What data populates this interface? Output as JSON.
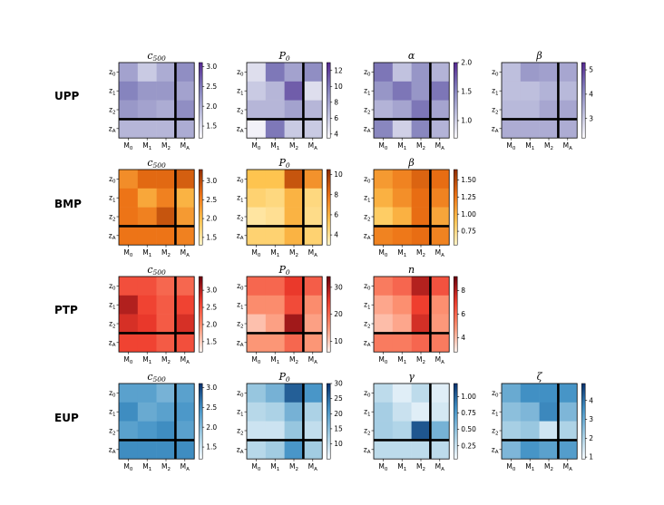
{
  "axis_labels": {
    "x": [
      "M0",
      "M1",
      "M2",
      "MA"
    ],
    "y": [
      "z0",
      "z1",
      "z2",
      "zA"
    ]
  },
  "chart_data": [
    {
      "type": "heatmap",
      "row": "UPP",
      "col": 0,
      "title": "c500",
      "cmap": "purple",
      "vmin": 1.2,
      "vmax": 3.1,
      "cbar_ticks": [
        1.5,
        2.0,
        2.5,
        3.0
      ],
      "cbar_labels": [
        "1.5",
        "2.0",
        "2.5",
        "3.0"
      ],
      "values": [
        [
          2.1,
          1.7,
          2.0,
          2.3
        ],
        [
          2.4,
          2.2,
          2.2,
          2.1
        ],
        [
          2.2,
          2.1,
          2.0,
          2.3
        ],
        [
          1.9,
          1.9,
          1.9,
          2.0
        ]
      ]
    },
    {
      "type": "heatmap",
      "row": "UPP",
      "col": 1,
      "title": "P0",
      "cmap": "purple",
      "vmin": 3.5,
      "vmax": 13,
      "cbar_ticks": [
        4,
        6,
        8,
        10,
        12
      ],
      "cbar_labels": [
        "4",
        "6",
        "8",
        "10",
        "12"
      ],
      "values": [
        [
          5,
          10,
          8,
          9
        ],
        [
          6,
          7,
          11,
          5
        ],
        [
          7,
          7,
          8,
          7
        ],
        [
          4,
          10,
          6,
          6
        ]
      ]
    },
    {
      "type": "heatmap",
      "row": "UPP",
      "col": 2,
      "title": "α",
      "cmap": "purple",
      "vmin": 0.7,
      "vmax": 2.0,
      "cbar_ticks": [
        1.0,
        1.5,
        2.0
      ],
      "cbar_labels": [
        "1.0",
        "1.5",
        "2.0"
      ],
      "values": [
        [
          1.6,
          1.1,
          1.4,
          1.2
        ],
        [
          1.4,
          1.6,
          1.4,
          1.6
        ],
        [
          1.2,
          1.3,
          1.6,
          1.3
        ],
        [
          1.5,
          1.0,
          1.5,
          1.2
        ]
      ]
    },
    {
      "type": "heatmap",
      "row": "UPP",
      "col": 3,
      "title": "β",
      "cmap": "purple",
      "vmin": 2.2,
      "vmax": 5.3,
      "cbar_ticks": [
        3,
        4,
        5
      ],
      "cbar_labels": [
        "3",
        "4",
        "5"
      ],
      "values": [
        [
          3.2,
          3.8,
          3.7,
          3.6
        ],
        [
          3.2,
          3.2,
          3.4,
          3.3
        ],
        [
          3.3,
          3.3,
          3.6,
          3.6
        ],
        [
          3.5,
          3.5,
          3.5,
          3.5
        ]
      ]
    },
    {
      "type": "heatmap",
      "row": "BMP",
      "col": 0,
      "title": "c500",
      "cmap": "orange",
      "vmin": 1.3,
      "vmax": 3.3,
      "cbar_ticks": [
        1.5,
        2.0,
        2.5,
        3.0
      ],
      "cbar_labels": [
        "1.5",
        "2.0",
        "2.5",
        "3.0"
      ],
      "values": [
        [
          2.4,
          2.7,
          2.7,
          2.8
        ],
        [
          2.6,
          2.2,
          2.5,
          2.1
        ],
        [
          2.6,
          2.5,
          2.9,
          2.3
        ],
        [
          2.6,
          2.6,
          2.6,
          2.5
        ]
      ]
    },
    {
      "type": "heatmap",
      "row": "BMP",
      "col": 1,
      "title": "P0",
      "cmap": "orange",
      "vmin": 3.0,
      "vmax": 10.5,
      "cbar_ticks": [
        4,
        6,
        8,
        10
      ],
      "cbar_labels": [
        "4",
        "6",
        "8",
        "10"
      ],
      "values": [
        [
          5.5,
          5.5,
          9,
          7
        ],
        [
          4.8,
          4.5,
          6,
          4.5
        ],
        [
          3.8,
          4.1,
          6,
          4.3
        ],
        [
          4.8,
          4.8,
          6,
          4.8
        ]
      ]
    },
    {
      "type": "heatmap",
      "row": "BMP",
      "col": 2,
      "title": "β",
      "cmap": "orange",
      "vmin": 0.55,
      "vmax": 1.65,
      "cbar_ticks": [
        0.75,
        1.0,
        1.25,
        1.5
      ],
      "cbar_labels": [
        "0.75",
        "1.00",
        "1.25",
        "1.50"
      ],
      "values": [
        [
          1.1,
          1.2,
          1.35,
          1.3
        ],
        [
          1.0,
          1.15,
          1.3,
          1.2
        ],
        [
          0.85,
          1.0,
          1.3,
          1.05
        ],
        [
          1.2,
          1.25,
          1.3,
          1.2
        ]
      ]
    },
    {
      "type": "heatmap",
      "row": "PTP",
      "col": 0,
      "title": "c500",
      "cmap": "red",
      "vmin": 1.2,
      "vmax": 3.4,
      "cbar_ticks": [
        1.5,
        2.0,
        2.5,
        3.0
      ],
      "cbar_labels": [
        "1.5",
        "2.0",
        "2.5",
        "3.0"
      ],
      "values": [
        [
          2.5,
          2.5,
          2.3,
          2.3
        ],
        [
          3.0,
          2.6,
          2.4,
          2.6
        ],
        [
          2.8,
          2.7,
          2.4,
          2.8
        ],
        [
          2.6,
          2.6,
          2.4,
          2.5
        ]
      ]
    },
    {
      "type": "heatmap",
      "row": "PTP",
      "col": 1,
      "title": "P0",
      "cmap": "red",
      "vmin": 6,
      "vmax": 34,
      "cbar_ticks": [
        10,
        20,
        30
      ],
      "cbar_labels": [
        "10",
        "20",
        "30"
      ],
      "values": [
        [
          20,
          20,
          25,
          21
        ],
        [
          16,
          16,
          23,
          16
        ],
        [
          11,
          14,
          30,
          14
        ],
        [
          15,
          15,
          20,
          15
        ]
      ]
    },
    {
      "type": "heatmap",
      "row": "PTP",
      "col": 2,
      "title": "n",
      "cmap": "red",
      "vmin": 2.8,
      "vmax": 9.2,
      "cbar_ticks": [
        4,
        6,
        8
      ],
      "cbar_labels": [
        "4",
        "6",
        "8"
      ],
      "values": [
        [
          5.5,
          6.0,
          8.0,
          6.5
        ],
        [
          4.5,
          5.0,
          7.0,
          5.0
        ],
        [
          4.0,
          4.5,
          7.5,
          4.8
        ],
        [
          5.5,
          5.5,
          6.0,
          5.5
        ]
      ]
    },
    {
      "type": "heatmap",
      "row": "EUP",
      "col": 0,
      "title": "c500",
      "cmap": "blue",
      "vmin": 1.2,
      "vmax": 3.1,
      "cbar_ticks": [
        1.5,
        2.0,
        2.5,
        3.0
      ],
      "cbar_labels": [
        "1.5",
        "2.0",
        "2.5",
        "3.0"
      ],
      "values": [
        [
          2.3,
          2.3,
          2.1,
          2.3
        ],
        [
          2.5,
          2.2,
          2.3,
          2.4
        ],
        [
          2.3,
          2.4,
          2.5,
          2.3
        ],
        [
          2.5,
          2.5,
          2.5,
          2.5
        ]
      ]
    },
    {
      "type": "heatmap",
      "row": "EUP",
      "col": 1,
      "title": "P0",
      "cmap": "blue",
      "vmin": 5,
      "vmax": 30,
      "cbar_ticks": [
        10,
        15,
        20,
        25,
        30
      ],
      "cbar_labels": [
        "10",
        "15",
        "20",
        "25",
        "30"
      ],
      "values": [
        [
          14,
          17,
          26,
          21
        ],
        [
          11,
          12,
          17,
          12
        ],
        [
          9,
          9,
          14,
          10
        ],
        [
          11,
          13,
          21,
          13
        ]
      ]
    },
    {
      "type": "heatmap",
      "row": "EUP",
      "col": 2,
      "title": "γ",
      "cmap": "blue",
      "vmin": 0.05,
      "vmax": 1.2,
      "cbar_ticks": [
        0.25,
        0.5,
        0.75,
        1.0
      ],
      "cbar_labels": [
        "0.25",
        "0.50",
        "0.75",
        "1.00"
      ],
      "values": [
        [
          0.3,
          0.15,
          0.3,
          0.15
        ],
        [
          0.4,
          0.25,
          0.15,
          0.2
        ],
        [
          0.4,
          0.35,
          1.05,
          0.6
        ],
        [
          0.3,
          0.3,
          0.3,
          0.3
        ]
      ]
    },
    {
      "type": "heatmap",
      "row": "EUP",
      "col": 3,
      "title": "ζ",
      "cmap": "blue",
      "vmin": 0.9,
      "vmax": 4.9,
      "cbar_ticks": [
        1,
        2,
        3,
        4
      ],
      "cbar_labels": [
        "1",
        "2",
        "3",
        "4"
      ],
      "values": [
        [
          3.0,
          3.6,
          3.6,
          3.5
        ],
        [
          2.5,
          2.7,
          3.7,
          2.7
        ],
        [
          2.1,
          2.3,
          1.5,
          2.0
        ],
        [
          2.7,
          3.5,
          3.2,
          3.3
        ]
      ]
    }
  ]
}
